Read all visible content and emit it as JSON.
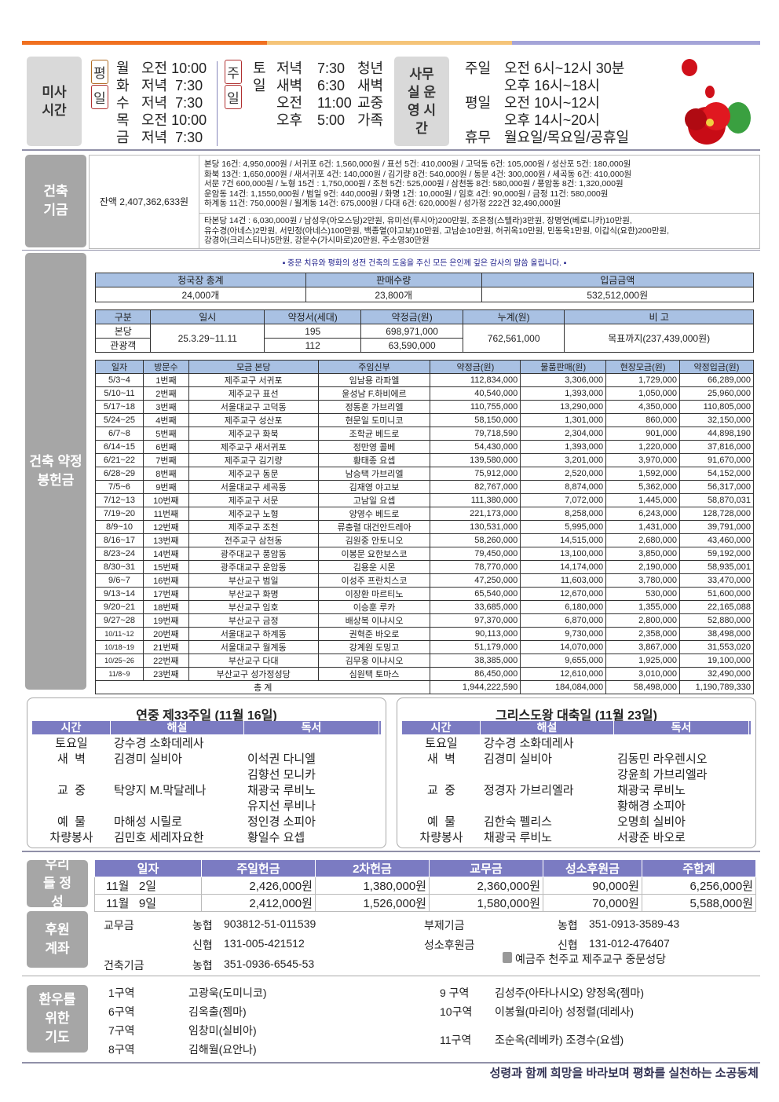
{
  "colors": {
    "bar1": "#f07020",
    "bar2": "#f5c478",
    "bar3": "#a4a4d8",
    "header_blue": "#a9c1e3",
    "header_purple": "#7b7bc2"
  },
  "mass": {
    "label": "미사 시간",
    "weekday_tag": [
      "평",
      "일"
    ],
    "weekday": [
      [
        "월",
        "오전 10:00"
      ],
      [
        "화",
        "저녁  7:30"
      ],
      [
        "수",
        "저녁  7:30"
      ],
      [
        "목",
        "오전 10:00"
      ],
      [
        "금",
        "저녁  7:30"
      ]
    ],
    "sunday_tag": [
      "주",
      "일"
    ],
    "sunday": [
      [
        "토",
        "저녁",
        "7:30",
        "청년"
      ],
      [
        "일",
        "새벽",
        "6:30",
        "새벽"
      ],
      [
        "",
        "오전",
        "11:00",
        "교중"
      ],
      [
        "",
        "오후",
        "5:00",
        "가족"
      ]
    ]
  },
  "office": {
    "label": "사무실 운영 시간",
    "rows": [
      [
        "주일",
        "오전 6시~12시 30분"
      ],
      [
        "",
        "오후 16시~18시"
      ],
      [
        "평일",
        "오전 10시~12시"
      ],
      [
        "",
        "오후 14시~20시"
      ],
      [
        "휴무",
        "월요일/목요일/공휴일"
      ]
    ]
  },
  "fund": {
    "label": "건축 기금",
    "balance": "잔액 2,407,362,633원",
    "parish_lines": [
      "본당 16건: 4,950,000원 / 서귀포 6건: 1,560,000원 / 표선 5건: 410,000원 / 고덕동 6건: 105,000원 / 성산포 5건: 180,000원",
      "화북 13건: 1,650,000원 / 새서귀포 4건: 140,000원 / 김기량 8건: 540,000원 / 동문 4건: 300,000원 / 세곡동 6건: 410,000원",
      "서문 7건 600,000원 / 노형 15건 : 1,750,000원 / 조천 5건: 525,000원 / 삼천동 8건: 580,000원 / 풍암동 8건: 1,320,000원",
      "운암동 14건: 1,1550,000원 / 범일 9건: 440,000원 / 화명 1건: 10,000원 / 임호 4건: 90,000원 / 금정 11건: 580,000원",
      "하계동 11건: 750,000원 / 월계동 14건: 675,000원 / 다대 6건: 620,000원 / 성가정 222건 32,490,000원"
    ],
    "other_lines": [
      "타본당 14건 : 6,030,000원 / 남성우(아오스딩)2만원, 유미선(루시아)200만원, 조은정(스텔라)3만원, 장명연(베로니카)10만원,",
      "유수경(아네스)2만원, 서민정(아네스)100만원, 백종열(야고보)10만원, 고남순10만원, 허귀옥10만원, 민동욱1만원, 이갑식(요한)200만원,",
      "강경아(크리스티나)5만원, 강문수(가시마로)20만원, 주소영30만원"
    ]
  },
  "pledge": {
    "label": "건축 약정 봉헌금",
    "notice": "▪ 중문 치유와 평화의 성전 건축의 도움을 주신 모든 은인께 깊은 감사의 말씀 올립니다. ▪",
    "sales": {
      "headers": [
        "청국장 총계",
        "판매수량",
        "입금금액"
      ],
      "values": [
        "24,000개",
        "23,800개",
        "532,512,000원"
      ]
    },
    "summary": {
      "headers": [
        "구분",
        "일시",
        "약정서(세대)",
        "약정금(원)",
        "누계(원)",
        "비 고"
      ],
      "period": "25.3.29~11.11",
      "rows": [
        [
          "본당",
          "195",
          "698,971,000"
        ],
        [
          "관광객",
          "112",
          "63,590,000"
        ]
      ],
      "cumulative": "762,561,000",
      "note": "목표까지(237,439,000원)"
    },
    "visits": {
      "headers": [
        "일자",
        "방문수",
        "모금 본당",
        "주임신부",
        "약정금(원)",
        "물품판매(원)",
        "현장모금(원)",
        "약정입금(원)"
      ],
      "rows": [
        [
          "5/3~4",
          "1번째",
          "제주교구 서귀포",
          "임남용 라파엘",
          "112,834,000",
          "3,306,000",
          "1,729,000",
          "66,289,000"
        ],
        [
          "5/10~11",
          "2번째",
          "제주교구 표선",
          "윤성남 F.하비에르",
          "40,540,000",
          "1,393,000",
          "1,050,000",
          "25,960,000"
        ],
        [
          "5/17~18",
          "3번째",
          "서울대교구 고덕동",
          "정동훈 가브리엘",
          "110,755,000",
          "13,290,000",
          "4,350,000",
          "110,805,000"
        ],
        [
          "5/24~25",
          "4번째",
          "제주교구 성산포",
          "현문일 도미니코",
          "58,150,000",
          "1,301,000",
          "860,000",
          "32,150,000"
        ],
        [
          "6/7~8",
          "5번째",
          "제주교구 화북",
          "조학균 베드로",
          "79,718,590",
          "2,304,000",
          "901,000",
          "44,898,190"
        ],
        [
          "6/14~15",
          "6번째",
          "제주교구 새서귀포",
          "정만영 콜베",
          "54,430,000",
          "1,393,000",
          "1,220,000",
          "37,816,000"
        ],
        [
          "6/21~22",
          "7번째",
          "제주교구 김기량",
          "황태종 요셉",
          "139,580,000",
          "3,201,000",
          "3,970,000",
          "91,670,000"
        ],
        [
          "6/28~29",
          "8번째",
          "제주교구 동문",
          "남승택 가브리엘",
          "75,912,000",
          "2,520,000",
          "1,592,000",
          "54,152,000"
        ],
        [
          "7/5~6",
          "9번째",
          "서울대교구 세곡동",
          "김재영 야고보",
          "82,767,000",
          "8,874,000",
          "5,362,000",
          "56,317,000"
        ],
        [
          "7/12~13",
          "10번째",
          "제주교구 서문",
          "고남일 요셉",
          "111,380,000",
          "7,072,000",
          "1,445,000",
          "58,870,031"
        ],
        [
          "7/19~20",
          "11번째",
          "제주교구 노형",
          "양영수 베드로",
          "221,173,000",
          "8,258,000",
          "6,243,000",
          "128,728,000"
        ],
        [
          "8/9~10",
          "12번째",
          "제주교구 조천",
          "류충렬 대건안드레아",
          "130,531,000",
          "5,995,000",
          "1,431,000",
          "39,791,000"
        ],
        [
          "8/16~17",
          "13번째",
          "전주교구 삼천동",
          "김원중 안토니오",
          "58,260,000",
          "14,515,000",
          "2,680,000",
          "43,460,000"
        ],
        [
          "8/23~24",
          "14번째",
          "광주대교구 풍암동",
          "이봉문 요한보스코",
          "79,450,000",
          "13,100,000",
          "3,850,000",
          "59,192,000"
        ],
        [
          "8/30~31",
          "15번째",
          "광주대교구 운암동",
          "김용운 시몬",
          "78,770,000",
          "14,174,000",
          "2,190,000",
          "58,935,001"
        ],
        [
          "9/6~7",
          "16번째",
          "부산교구 범일",
          "이성주 프란치스코",
          "47,250,000",
          "11,603,000",
          "3,780,000",
          "33,470,000"
        ],
        [
          "9/13~14",
          "17번째",
          "부산교구 화명",
          "이장환 마르티노",
          "65,540,000",
          "12,670,000",
          "530,000",
          "51,600,000"
        ],
        [
          "9/20~21",
          "18번째",
          "부산교구 임호",
          "이승훈 루카",
          "33,685,000",
          "6,180,000",
          "1,355,000",
          "22,165,088"
        ],
        [
          "9/27~28",
          "19번째",
          "부산교구 금정",
          "배상복 이냐시오",
          "97,370,000",
          "6,870,000",
          "2,800,000",
          "52,880,000"
        ],
        [
          "10/11~12",
          "20번째",
          "서울대교구 하계동",
          "권혁준 바오로",
          "90,113,000",
          "9,730,000",
          "2,358,000",
          "38,498,000"
        ],
        [
          "10/18~19",
          "21번째",
          "서울대교구 월계동",
          "강계원 도밍고",
          "51,179,000",
          "14,070,000",
          "3,867,000",
          "31,553,020"
        ],
        [
          "10/25~26",
          "22번째",
          "부산교구 다대",
          "김무웅 이냐시오",
          "38,385,000",
          "9,655,000",
          "1,925,000",
          "19,100,000"
        ],
        [
          "11/8~9",
          "23번째",
          "부산교구 성가정성당",
          "심원택 토마스",
          "86,450,000",
          "12,610,000",
          "3,010,000",
          "32,490,000"
        ]
      ],
      "total_label": "총  계",
      "totals": [
        "1,944,222,590",
        "184,084,000",
        "58,498,000",
        "1,190,789,330"
      ]
    }
  },
  "liturgy": [
    {
      "title": "연중 제33주일 (11월 16일)",
      "headers": [
        "시간",
        "해설",
        "독서"
      ],
      "rows": [
        [
          "토요일",
          "강수경 소화데레사",
          ""
        ],
        [
          "새  벽",
          "김경미 실비아",
          "이석권 다니엘"
        ],
        [
          "",
          "",
          "김향선 모니카"
        ],
        [
          "교  중",
          "탁양지 M.막달레나",
          "채광국 루비노"
        ],
        [
          "",
          "",
          "유지선 루비나"
        ],
        [
          "예  물",
          "마해성 시릴로",
          "정인경 소피아"
        ],
        [
          "차량봉사",
          "김민호 세레자요한",
          "황일수 요셉"
        ]
      ]
    },
    {
      "title": "그리스도왕 대축일 (11월 23일)",
      "headers": [
        "시간",
        "해설",
        "독서"
      ],
      "rows": [
        [
          "토요일",
          "강수경 소화데레사",
          ""
        ],
        [
          "새  벽",
          "김경미 실비아",
          "김동민 라우렌시오"
        ],
        [
          "",
          "",
          "강윤희 가브리엘라"
        ],
        [
          "교  중",
          "정경자 가브리엘라",
          "채광국 루비노"
        ],
        [
          "",
          "",
          "황해경 소피아"
        ],
        [
          "예  물",
          "김한숙 펠리스",
          "오명희 실비아"
        ],
        [
          "차량봉사",
          "채광국 루비노",
          "서광준 바오로"
        ]
      ]
    }
  ],
  "offering": {
    "label": "우리들 정성",
    "headers": [
      "일자",
      "주일헌금",
      "2차헌금",
      "교무금",
      "성소후원금",
      "주합계"
    ],
    "rows": [
      [
        "11월   2일",
        "2,426,000원",
        "1,380,000원",
        "2,360,000원",
        "90,000원",
        "6,256,000원"
      ],
      [
        "11월   9일",
        "2,412,000원",
        "1,526,000원",
        "1,580,000원",
        "70,000원",
        "5,588,000원"
      ]
    ]
  },
  "accounts": {
    "label": "후원 계좌",
    "items": [
      [
        "교무금",
        "농협",
        "903812-51-011539"
      ],
      [
        "",
        "신협",
        "131-005-421512"
      ],
      [
        "건축기금",
        "농협",
        "351-0936-6545-53"
      ],
      [
        "부제기금",
        "농협",
        "351-0913-3589-43"
      ],
      [
        "성소후원금",
        "신협",
        "131-012-476407"
      ]
    ],
    "holder": "예금주 천주교 제주교구 중문성당"
  },
  "prayer": {
    "label": "환우를 위한 기도",
    "left": [
      [
        "1구역",
        "고광욱(도미니코)"
      ],
      [
        "6구역",
        "김옥출(젬마)"
      ],
      [
        "7구역",
        "임창미(실비아)"
      ],
      [
        "8구역",
        "김해월(요안나)"
      ]
    ],
    "right": [
      [
        "9 구역",
        "김성주(아타나시오) 양정옥(젬마)"
      ],
      [
        "10구역",
        "이봉월(마리아) 성정렬(데레사)"
      ],
      [
        "11구역",
        "조순옥(레베카) 조경수(요셉)"
      ]
    ]
  },
  "footer": "성령과 함께 희망을 바라보며 평화를 실천하는 소공동체"
}
